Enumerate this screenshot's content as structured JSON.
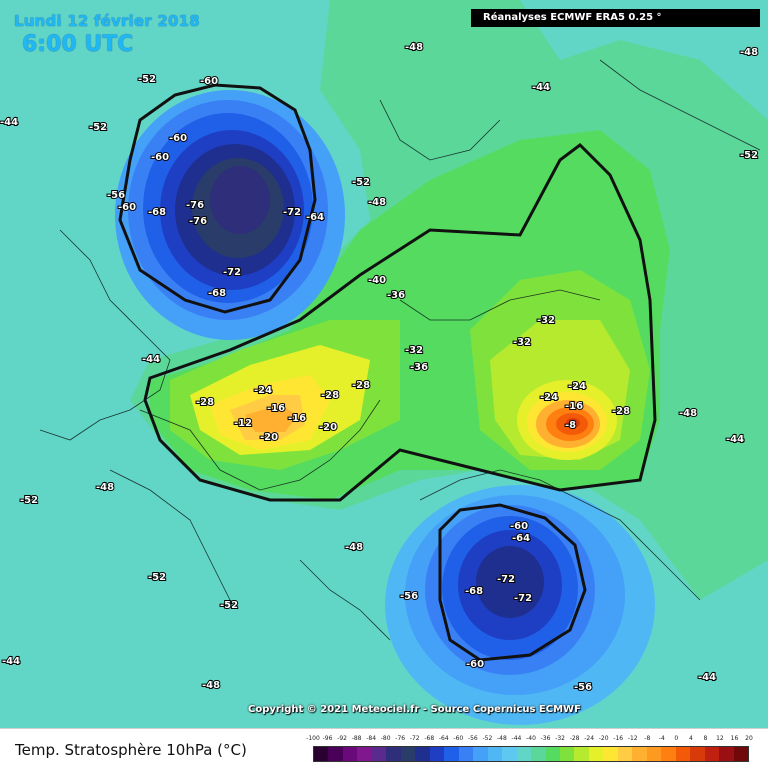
{
  "header": {
    "date": "Lundi 12 février 2018",
    "time": "6:00 UTC",
    "source": "Réanalyses ECMWF ERA5 0.25 °"
  },
  "copyright": "Copyright © 2021 Meteociel.fr - Source Copernicus ECMWF",
  "legend": {
    "title": "Temp. Stratosphère 10hPa (°C)",
    "ticks": [
      "-100",
      "-96",
      "-92",
      "-88",
      "-84",
      "-80",
      "-76",
      "-72",
      "-68",
      "-64",
      "-60",
      "-56",
      "-52",
      "-48",
      "-44",
      "-40",
      "-36",
      "-32",
      "-28",
      "-24",
      "-20",
      "-16",
      "-12",
      "-8",
      "-4",
      "0",
      "4",
      "8",
      "12",
      "16",
      "20"
    ],
    "colors": [
      "#2a0030",
      "#4a0058",
      "#6a0a7a",
      "#80178f",
      "#5a2a8f",
      "#2e2e7a",
      "#2a3c6a",
      "#1f2f8f",
      "#1e3fc4",
      "#2060e8",
      "#3a80f5",
      "#45a0f7",
      "#4fb8f4",
      "#5ec8f0",
      "#62d6c6",
      "#5bd79a",
      "#55dc60",
      "#7fe23c",
      "#b6ea2e",
      "#e6f02a",
      "#ffe633",
      "#ffcc44",
      "#ffb030",
      "#ff9a20",
      "#ff7f10",
      "#f25a08",
      "#d83a0a",
      "#c02010",
      "#9a1012",
      "#700a0a"
    ]
  },
  "map_labels": [
    {
      "id": "c1",
      "text": "-76"
    },
    {
      "id": "c2",
      "text": "-76"
    },
    {
      "id": "c3",
      "text": "-72"
    },
    {
      "id": "c4",
      "text": "-72"
    },
    {
      "id": "c5",
      "text": "-68"
    },
    {
      "id": "c6",
      "text": "-68"
    },
    {
      "id": "c7",
      "text": "-64"
    },
    {
      "id": "c8",
      "text": "-60"
    },
    {
      "id": "c9",
      "text": "-60"
    },
    {
      "id": "c10",
      "text": "-60"
    },
    {
      "id": "c11",
      "text": "-60"
    },
    {
      "id": "c12",
      "text": "-56"
    },
    {
      "id": "c13",
      "text": "-52"
    },
    {
      "id": "c14",
      "text": "-52"
    },
    {
      "id": "c15",
      "text": "-52"
    },
    {
      "id": "c16",
      "text": "-48"
    },
    {
      "id": "c17",
      "text": "-48"
    },
    {
      "id": "c18",
      "text": "-44"
    },
    {
      "id": "c19",
      "text": "-44"
    },
    {
      "id": "c20",
      "text": "-44"
    },
    {
      "id": "c21",
      "text": "-40"
    },
    {
      "id": "c22",
      "text": "-36"
    },
    {
      "id": "c23",
      "text": "-36"
    },
    {
      "id": "c24",
      "text": "-32"
    },
    {
      "id": "c25",
      "text": "-32"
    },
    {
      "id": "c26",
      "text": "-32"
    },
    {
      "id": "c27",
      "text": "-28"
    },
    {
      "id": "c28",
      "text": "-28"
    },
    {
      "id": "c29",
      "text": "-24"
    },
    {
      "id": "c30",
      "text": "-20"
    },
    {
      "id": "c31",
      "text": "-16"
    },
    {
      "id": "c32",
      "text": "-16"
    },
    {
      "id": "c33",
      "text": "-12"
    },
    {
      "id": "c34",
      "text": "-20"
    },
    {
      "id": "c35",
      "text": "-24"
    },
    {
      "id": "c36",
      "text": "-28"
    },
    {
      "id": "c37",
      "text": "-8"
    },
    {
      "id": "c38",
      "text": "-16"
    },
    {
      "id": "c39",
      "text": "-24"
    },
    {
      "id": "c40",
      "text": "-28"
    },
    {
      "id": "c41",
      "text": "-60"
    },
    {
      "id": "c42",
      "text": "-64"
    },
    {
      "id": "c43",
      "text": "-68"
    },
    {
      "id": "c44",
      "text": "-72"
    },
    {
      "id": "c45",
      "text": "-72"
    },
    {
      "id": "c46",
      "text": "-60"
    },
    {
      "id": "c47",
      "text": "-56"
    },
    {
      "id": "c48",
      "text": "-56"
    },
    {
      "id": "c49",
      "text": "-52"
    },
    {
      "id": "c50",
      "text": "-52"
    },
    {
      "id": "c51",
      "text": "-48"
    },
    {
      "id": "c52",
      "text": "-48"
    },
    {
      "id": "c53",
      "text": "-44"
    },
    {
      "id": "c54",
      "text": "-44"
    },
    {
      "id": "c55",
      "text": "-48"
    },
    {
      "id": "c56",
      "text": "-44"
    },
    {
      "id": "c57",
      "text": "-52"
    },
    {
      "id": "c58",
      "text": "-48"
    },
    {
      "id": "c59",
      "text": "-52"
    },
    {
      "id": "c60",
      "text": "-48"
    }
  ]
}
